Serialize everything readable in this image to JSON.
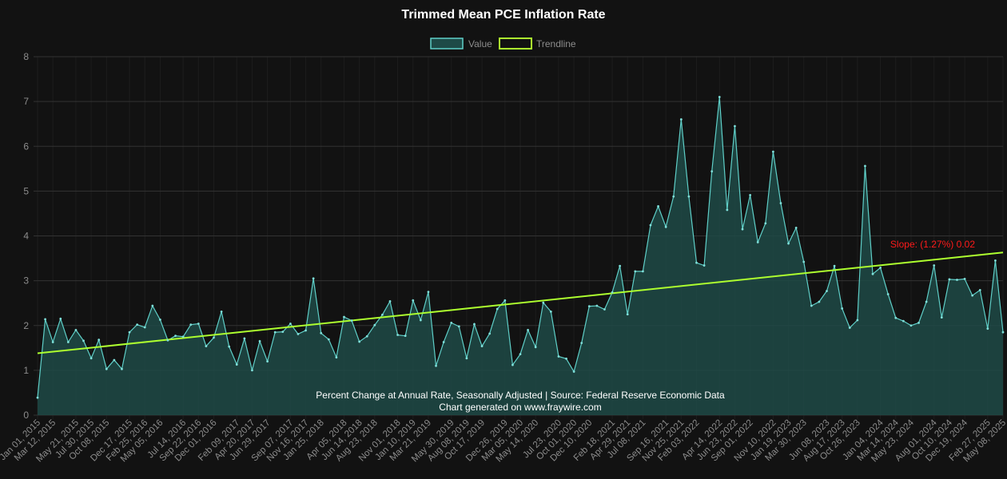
{
  "chart_data": {
    "type": "area",
    "title": "Trimmed Mean PCE Inflation Rate",
    "legend": [
      {
        "label": "Value",
        "color": "#1e4a47",
        "border": "#5fcfc8"
      },
      {
        "label": "Trendline",
        "color": "#121212",
        "border": "#adff2f"
      }
    ],
    "legend_position": "top",
    "ylim": [
      0,
      8
    ],
    "yticks": [
      "0",
      "1",
      "2",
      "3",
      "4",
      "5",
      "6",
      "7",
      "8"
    ],
    "grid": true,
    "x_tick_labels": [
      "Jan 01, 2015",
      "Mar 12, 2015",
      "May 21, 2015",
      "Jul 30, 2015",
      "Oct 08, 2015",
      "Dec 17, 2015",
      "Feb 25, 2016",
      "May 05, 2016",
      "Jul 14, 2016",
      "Sep 22, 2016",
      "Dec 01, 2016",
      "Feb 09, 2017",
      "Apr 20, 2017",
      "Jun 29, 2017",
      "Sep 07, 2017",
      "Nov 16, 2017",
      "Jan 25, 2018",
      "Apr 05, 2018",
      "Jun 14, 2018",
      "Aug 23, 2018",
      "Nov 01, 2018",
      "Jan 10, 2019",
      "Mar 21, 2019",
      "May 30, 2019",
      "Aug 08, 2019",
      "Oct 17, 2019",
      "Dec 26, 2019",
      "Mar 05, 2020",
      "May 14, 2020",
      "Jul 23, 2020",
      "Oct 01, 2020",
      "Dec 10, 2020",
      "Feb 18, 2021",
      "Apr 29, 2021",
      "Jul 08, 2021",
      "Sep 16, 2021",
      "Nov 25, 2021",
      "Feb 03, 2022",
      "Apr 14, 2022",
      "Jun 23, 2022",
      "Sep 01, 2022",
      "Nov 10, 2022",
      "Jan 19, 2023",
      "Mar 30, 2023",
      "Jun 08, 2023",
      "Aug 17, 2023",
      "Oct 26, 2023",
      "Jan 04, 2024",
      "Mar 14, 2024",
      "May 23, 2024",
      "Aug 01, 2024",
      "Oct 10, 2024",
      "Dec 19, 2024",
      "Feb 27, 2025",
      "May 08, 2025"
    ],
    "series": [
      {
        "name": "Value",
        "values": [
          0.39,
          2.14,
          1.63,
          2.15,
          1.63,
          1.9,
          1.66,
          1.27,
          1.68,
          1.03,
          1.23,
          1.03,
          1.85,
          2.02,
          1.96,
          2.44,
          2.13,
          1.67,
          1.77,
          1.75,
          2.02,
          2.04,
          1.54,
          1.73,
          2.31,
          1.53,
          1.13,
          1.71,
          1.0,
          1.65,
          1.2,
          1.85,
          1.86,
          2.04,
          1.81,
          1.89,
          3.05,
          1.83,
          1.69,
          1.29,
          2.19,
          2.11,
          1.64,
          1.76,
          2.01,
          2.24,
          2.54,
          1.79,
          1.77,
          2.56,
          2.12,
          2.75,
          1.1,
          1.63,
          2.06,
          1.98,
          1.27,
          2.03,
          1.54,
          1.82,
          2.37,
          2.56,
          1.12,
          1.36,
          1.9,
          1.52,
          2.51,
          2.31,
          1.31,
          1.26,
          0.97,
          1.61,
          2.43,
          2.44,
          2.36,
          2.74,
          3.33,
          2.25,
          3.21,
          3.21,
          4.24,
          4.66,
          4.2,
          4.88,
          6.6,
          4.88,
          3.4,
          3.34,
          5.44,
          7.1,
          4.58,
          6.45,
          4.15,
          4.91,
          3.86,
          4.28,
          5.88,
          4.73,
          3.83,
          4.18,
          3.42,
          2.44,
          2.53,
          2.77,
          3.33,
          2.38,
          1.95,
          2.12,
          5.56,
          3.15,
          3.29,
          2.7,
          2.17,
          2.1,
          2.0,
          2.06,
          2.53,
          3.34,
          2.18,
          3.03,
          3.02,
          3.04,
          2.67,
          2.79,
          1.93,
          3.45,
          1.85
        ]
      },
      {
        "name": "Trendline",
        "values": [
          1.38,
          3.63
        ]
      }
    ],
    "annotation": "Slope: (1.27%) 0.02",
    "footer": {
      "line1": "Percent Change at Annual Rate, Seasonally Adjusted | Source: Federal Reserve Economic Data",
      "line2": "Chart generated on www.fraywire.com"
    }
  }
}
